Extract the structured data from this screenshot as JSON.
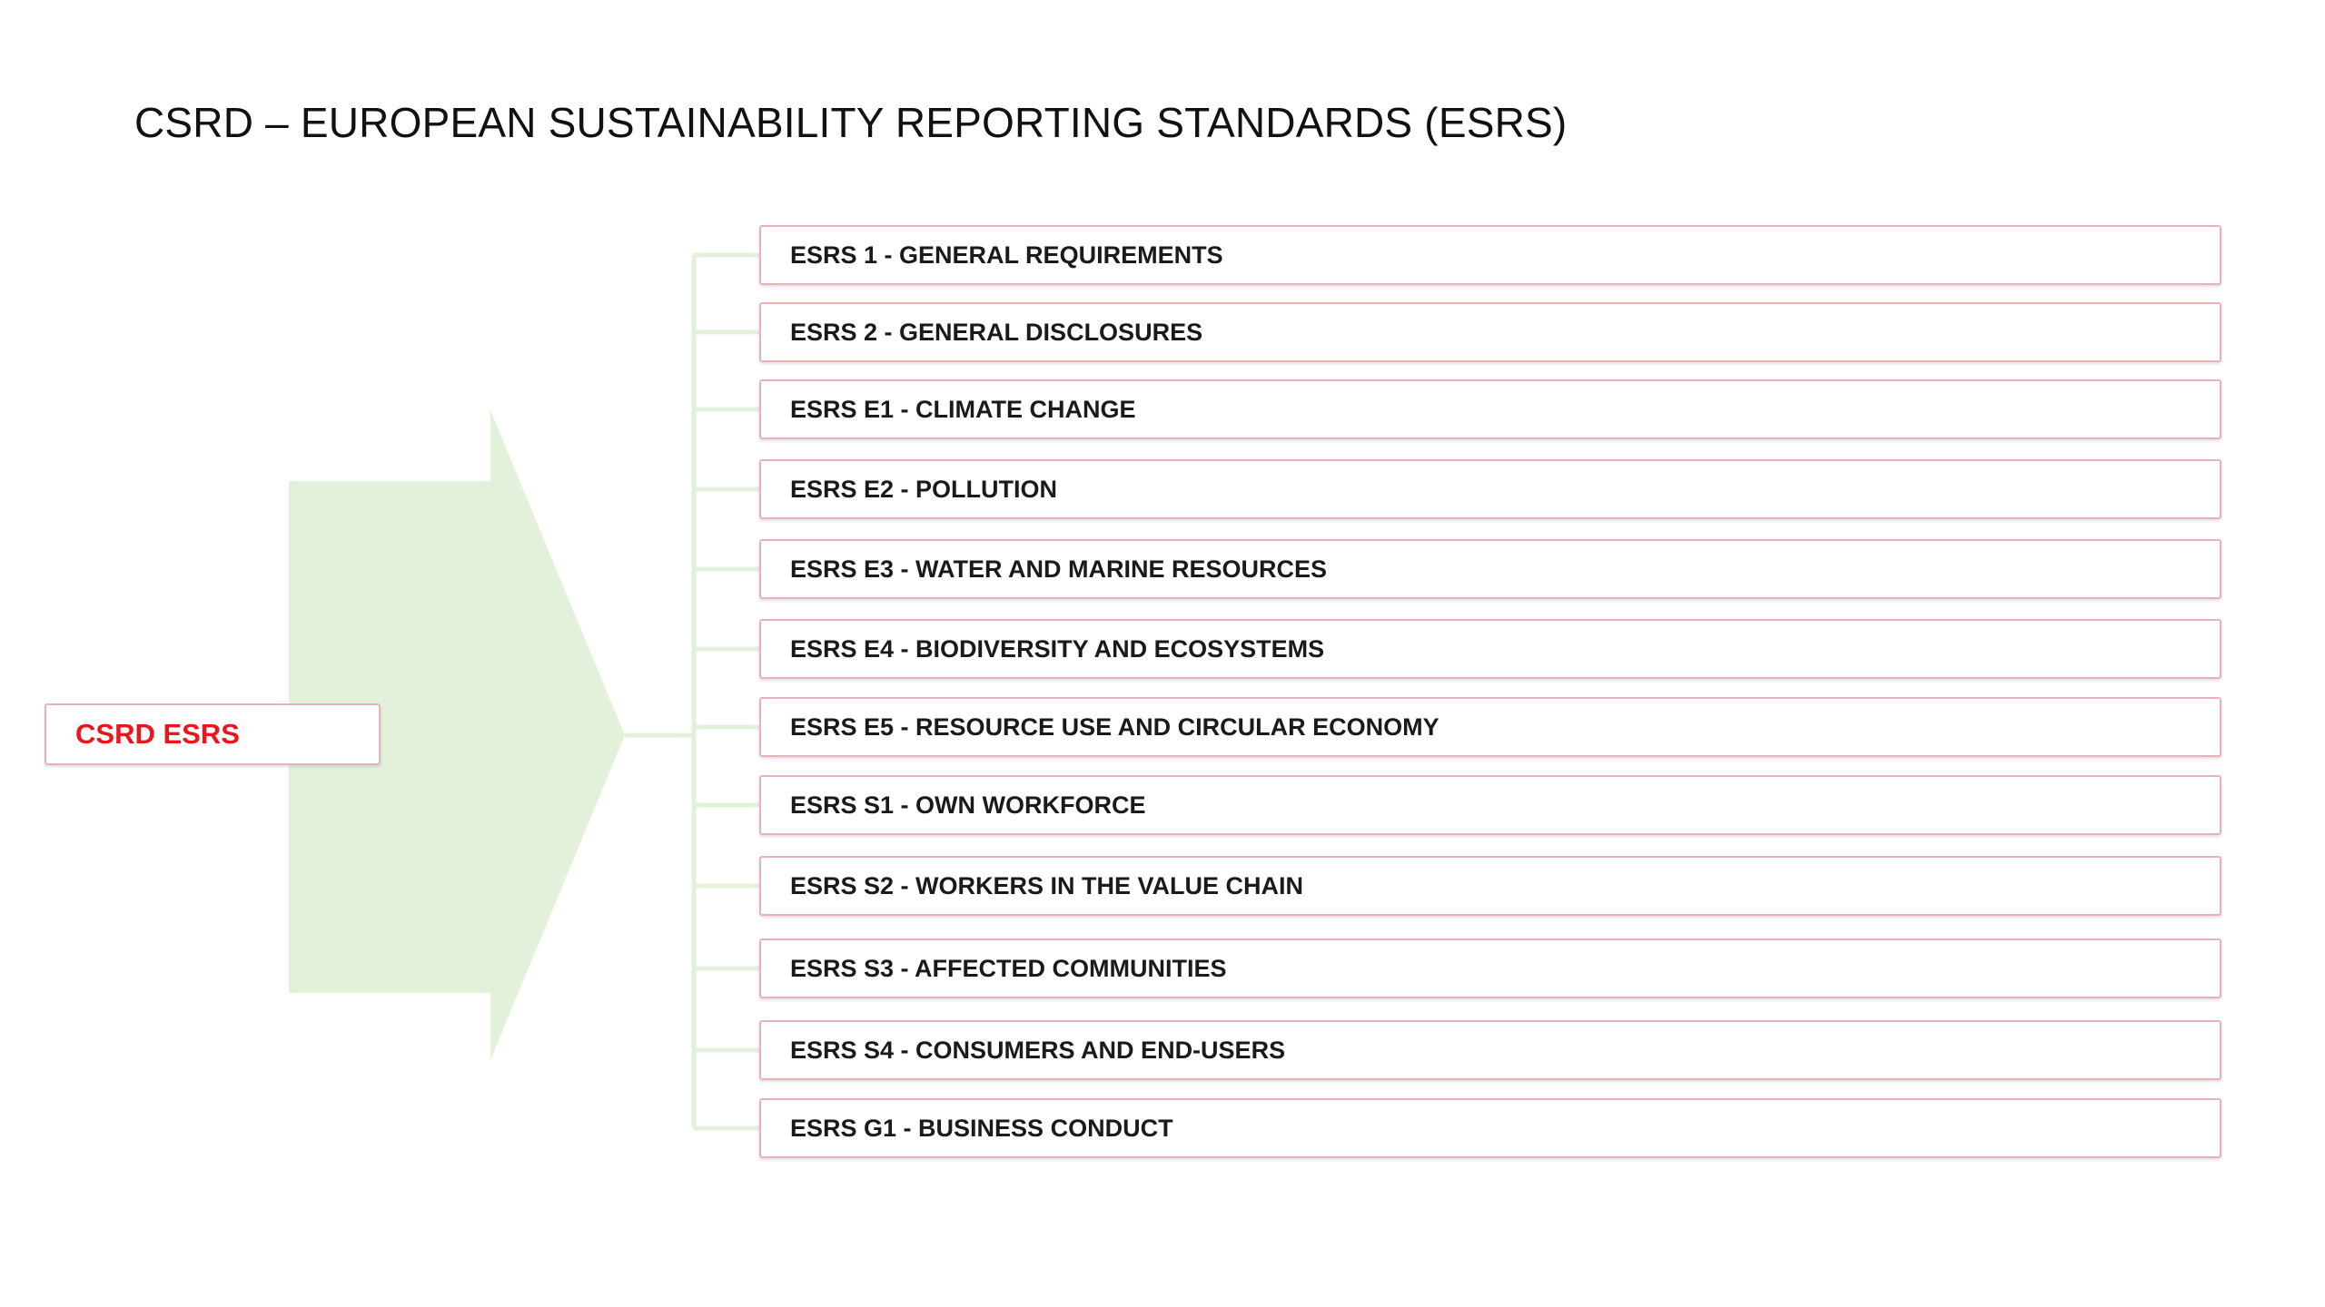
{
  "title": "CSRD – EUROPEAN SUSTAINABILITY REPORTING STANDARDS (ESRS)",
  "root": {
    "label": "CSRD ESRS"
  },
  "standards": [
    {
      "label": "ESRS 1 - GENERAL REQUIREMENTS"
    },
    {
      "label": "ESRS 2 - GENERAL DISCLOSURES"
    },
    {
      "label": "ESRS E1 - CLIMATE CHANGE"
    },
    {
      "label": "ESRS E2 - POLLUTION"
    },
    {
      "label": "ESRS E3 - WATER AND MARINE RESOURCES"
    },
    {
      "label": "ESRS E4 - BIODIVERSITY AND ECOSYSTEMS"
    },
    {
      "label": "ESRS E5 - RESOURCE USE AND CIRCULAR ECONOMY"
    },
    {
      "label": "ESRS S1 - OWN WORKFORCE"
    },
    {
      "label": "ESRS S2 - WORKERS IN THE VALUE CHAIN"
    },
    {
      "label": "ESRS S3 - AFFECTED COMMUNITIES"
    },
    {
      "label": "ESRS S4 - CONSUMERS AND END-USERS"
    },
    {
      "label": "ESRS G1 - BUSINESS CONDUCT"
    }
  ],
  "colors": {
    "arrow_fill": "#e3f0da",
    "connector": "#e3f0da",
    "box_border": "#e8b3b8",
    "root_text": "#e8161d",
    "item_text": "#1a1a1a"
  }
}
